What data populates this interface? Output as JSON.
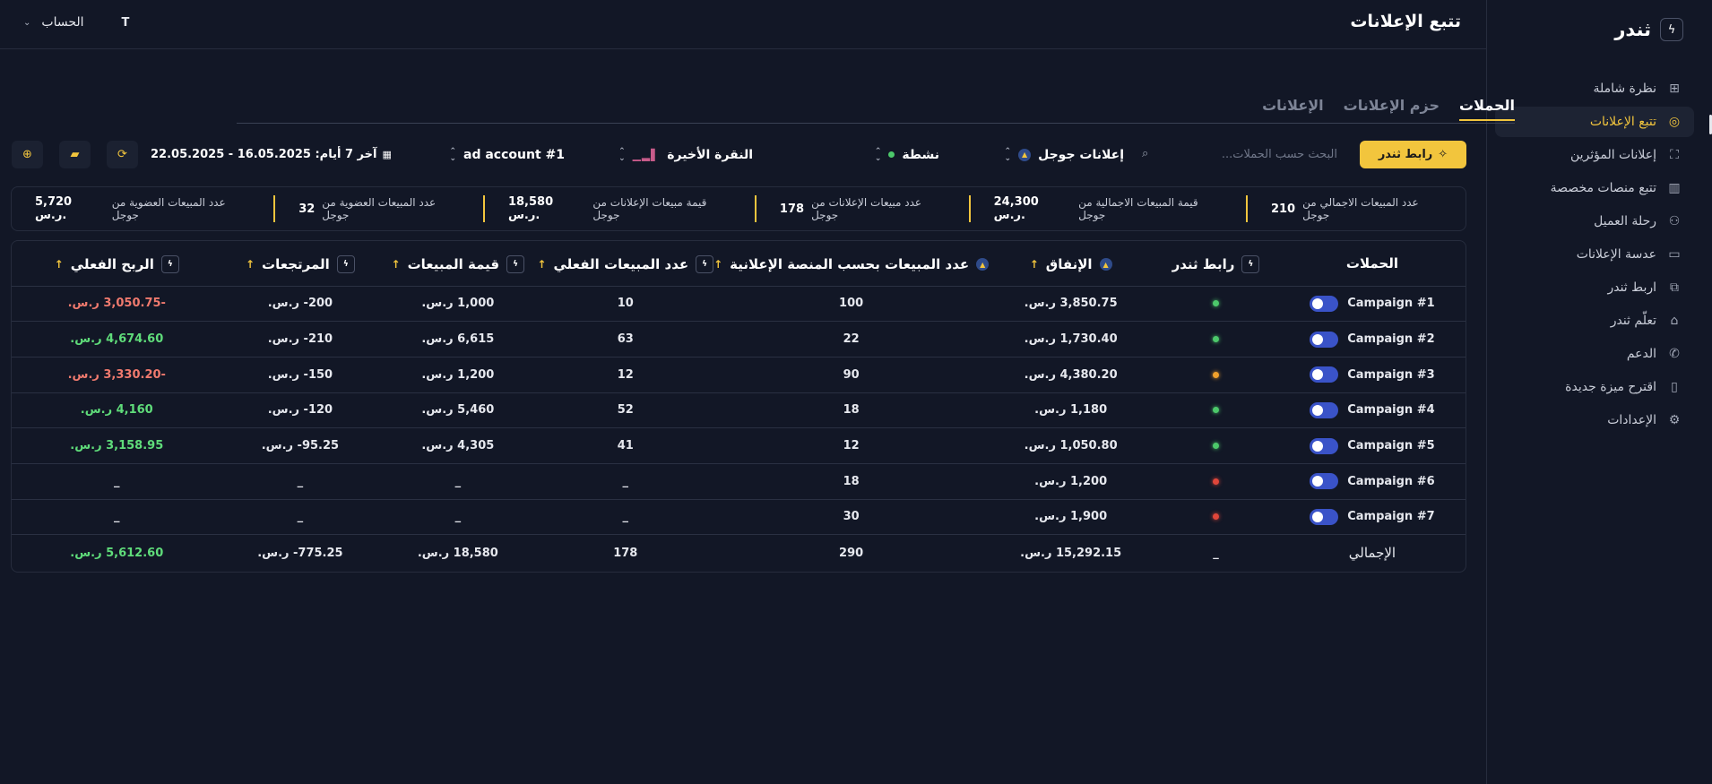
{
  "brand": {
    "name": "ثندر",
    "logo_icon": "bolt-icon"
  },
  "sidebar": {
    "items": [
      {
        "label": "نظرة شاملة",
        "icon": "grid-icon",
        "glyph": "⊞"
      },
      {
        "label": "تتبع الإعلانات",
        "icon": "target-icon",
        "glyph": "◎",
        "active": true
      },
      {
        "label": "إعلانات المؤثرين",
        "icon": "scan-face-icon",
        "glyph": "⛶"
      },
      {
        "label": "تتبع منصات مخصصة",
        "icon": "chart-icon",
        "glyph": "▥"
      },
      {
        "label": "رحلة العميل",
        "icon": "users-icon",
        "glyph": "⚇"
      },
      {
        "label": "عدسة الإعلانات",
        "icon": "tv-icon",
        "glyph": "▭"
      },
      {
        "label": "اربط ثندر",
        "icon": "network-icon",
        "glyph": "⧉"
      },
      {
        "label": "تعلّم ثندر",
        "icon": "graduation-cap-icon",
        "glyph": "⌂"
      },
      {
        "label": "الدعم",
        "icon": "phone-icon",
        "glyph": "✆"
      },
      {
        "label": "اقترح ميزة جديدة",
        "icon": "file-plus-icon",
        "glyph": "▯"
      },
      {
        "label": "الإعدادات",
        "icon": "gear-icon",
        "glyph": "⚙"
      }
    ]
  },
  "header": {
    "title": "تتبع الإعلانات",
    "account_label": "الحساب",
    "avatar_letter": "T"
  },
  "tabs": [
    {
      "label": "الحملات",
      "active": true
    },
    {
      "label": "حزم الإعلانات"
    },
    {
      "label": "الإعلانات"
    }
  ],
  "filters": {
    "cta_label": "رابط ثندر",
    "search_placeholder": "البحث حسب الحملات...",
    "platform": "إعلانات جوجل",
    "status": "نشطة",
    "attribution": "النقرة الأخيرة",
    "account": "ad account #1",
    "date_range": "آخر 7 أيام: 16.05.2025 - 22.05.2025"
  },
  "stats": [
    {
      "label": "عدد المبيعات الاجمالي من جوجل",
      "value": "210"
    },
    {
      "label": "قيمة المبيعات الاجمالية من جوجل",
      "value": "24,300 ر.س."
    },
    {
      "label": "عدد مبيعات الإعلانات من جوجل",
      "value": "178"
    },
    {
      "label": "قيمة مبيعات الإعلانات من جوجل",
      "value": "18,580 ر.س."
    },
    {
      "label": "عدد المبيعات العضوية من جوجل",
      "value": "32"
    },
    {
      "label": "عدد المبيعات العضوية من جوجل",
      "value": "5,720 ر.س."
    }
  ],
  "table": {
    "headers": {
      "campaigns": "الحملات",
      "thunder_link": "رابط ثندر",
      "spend": "الإنفاق",
      "platform_sales": "عدد المبيعات بحسب المنصة الإعلانية",
      "actual_sales": "عدد المبيعات الفعلي",
      "sales_value": "قيمة المبيعات",
      "refunds": "المرتجعات",
      "net_profit": "الربح الفعلي"
    },
    "rows": [
      {
        "name": "Campaign #1",
        "status": "#4cc86a",
        "spend": "3,850.75 ر.س.",
        "platform_sales": "100",
        "actual_sales": "10",
        "sales_value": "1,000 ر.س.",
        "refunds": "200- ر.س.",
        "profit": "-3,050.75 ر.س.",
        "profit_tone": "red"
      },
      {
        "name": "Campaign #2",
        "status": "#4cc86a",
        "spend": "1,730.40 ر.س.",
        "platform_sales": "22",
        "actual_sales": "63",
        "sales_value": "6,615 ر.س.",
        "refunds": "210- ر.س.",
        "profit": "4,674.60 ر.س.",
        "profit_tone": "green"
      },
      {
        "name": "Campaign #3",
        "status": "#f0a12c",
        "spend": "4,380.20 ر.س.",
        "platform_sales": "90",
        "actual_sales": "12",
        "sales_value": "1,200 ر.س.",
        "refunds": "150- ر.س.",
        "profit": "-3,330.20 ر.س.",
        "profit_tone": "red"
      },
      {
        "name": "Campaign #4",
        "status": "#4cc86a",
        "spend": "1,180 ر.س.",
        "platform_sales": "18",
        "actual_sales": "52",
        "sales_value": "5,460 ر.س.",
        "refunds": "120- ر.س.",
        "profit": "4,160 ر.س.",
        "profit_tone": "green"
      },
      {
        "name": "Campaign #5",
        "status": "#4cc86a",
        "spend": "1,050.80 ر.س.",
        "platform_sales": "12",
        "actual_sales": "41",
        "sales_value": "4,305 ر.س.",
        "refunds": "95.25- ر.س.",
        "profit": "3,158.95 ر.س.",
        "profit_tone": "green"
      },
      {
        "name": "Campaign #6",
        "status": "#e0463a",
        "spend": "1,200 ر.س.",
        "platform_sales": "18",
        "actual_sales": "_",
        "sales_value": "_",
        "refunds": "_",
        "profit": "_",
        "profit_tone": "plain"
      },
      {
        "name": "Campaign #7",
        "status": "#e0463a",
        "spend": "1,900 ر.س.",
        "platform_sales": "30",
        "actual_sales": "_",
        "sales_value": "_",
        "refunds": "_",
        "profit": "_",
        "profit_tone": "plain"
      }
    ],
    "total": {
      "label": "الإجمالي",
      "link": "_",
      "spend": "15,292.15 ر.س.",
      "platform_sales": "290",
      "actual_sales": "178",
      "sales_value": "18,580 ر.س.",
      "refunds": "775.25- ر.س.",
      "profit": "5,612.60 ر.س."
    }
  },
  "colors": {
    "accent": "#f2c53d",
    "background": "#121726",
    "toggle": "#3a53c8",
    "positive": "#5fdc7a",
    "negative": "#f07a6e"
  }
}
